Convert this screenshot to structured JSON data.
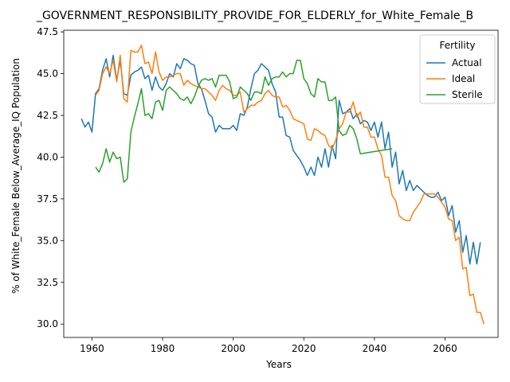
{
  "chart_data": {
    "type": "line",
    "title": "_GOVERNMENT_RESPONSIBILITY_PROVIDE_FOR_ELDERLY_for_White_Female_B",
    "xlabel": "Years",
    "ylabel": "% of White_Female Below_Average_IQ Population",
    "xlim": [
      1952,
      2075
    ],
    "ylim": [
      29.2,
      47.6
    ],
    "xticks": [
      1960,
      1980,
      2000,
      2020,
      2040,
      2060
    ],
    "yticks": [
      30.0,
      32.5,
      35.0,
      37.5,
      40.0,
      42.5,
      45.0,
      47.5
    ],
    "grid": false,
    "legend": {
      "title": "Fertility",
      "position": "top-right"
    },
    "series": [
      {
        "name": "Actual",
        "color": "#1f77b4",
        "points": [
          [
            1957,
            42.3
          ],
          [
            1958,
            41.8
          ],
          [
            1959,
            42.1
          ],
          [
            1960,
            41.5
          ],
          [
            1961,
            43.8
          ],
          [
            1962,
            44.1
          ],
          [
            1963,
            45.2
          ],
          [
            1964,
            45.9
          ],
          [
            1965,
            44.8
          ],
          [
            1966,
            46.1
          ],
          [
            1967,
            44.6
          ],
          [
            1968,
            45.8
          ],
          [
            1969,
            43.8
          ],
          [
            1970,
            43.7
          ],
          [
            1971,
            44.9
          ],
          [
            1972,
            45.1
          ],
          [
            1973,
            45.2
          ],
          [
            1974,
            45.4
          ],
          [
            1975,
            44.7
          ],
          [
            1976,
            44.9
          ],
          [
            1977,
            44.0
          ],
          [
            1978,
            44.8
          ],
          [
            1979,
            44.2
          ],
          [
            1980,
            44.0
          ],
          [
            1981,
            44.4
          ],
          [
            1982,
            45.0
          ],
          [
            1983,
            44.8
          ],
          [
            1984,
            45.6
          ],
          [
            1985,
            45.3
          ],
          [
            1986,
            45.9
          ],
          [
            1987,
            45.8
          ],
          [
            1988,
            45.6
          ],
          [
            1989,
            45.5
          ],
          [
            1990,
            44.4
          ],
          [
            1991,
            44.1
          ],
          [
            1992,
            43.4
          ],
          [
            1993,
            42.6
          ],
          [
            1994,
            42.4
          ],
          [
            1995,
            41.5
          ],
          [
            1996,
            41.9
          ],
          [
            1997,
            41.7
          ],
          [
            1998,
            41.7
          ],
          [
            1999,
            41.7
          ],
          [
            2000,
            41.9
          ],
          [
            2001,
            41.6
          ],
          [
            2002,
            42.6
          ],
          [
            2003,
            42.5
          ],
          [
            2004,
            43.0
          ],
          [
            2005,
            44.1
          ],
          [
            2006,
            45.0
          ],
          [
            2007,
            45.2
          ],
          [
            2008,
            45.6
          ],
          [
            2009,
            45.4
          ],
          [
            2010,
            45.2
          ],
          [
            2011,
            44.4
          ],
          [
            2012,
            43.9
          ],
          [
            2013,
            42.4
          ],
          [
            2014,
            42.4
          ],
          [
            2015,
            41.3
          ],
          [
            2016,
            41.2
          ],
          [
            2017,
            40.4
          ],
          [
            2018,
            40.1
          ],
          [
            2019,
            39.8
          ],
          [
            2020,
            39.4
          ],
          [
            2021,
            38.9
          ],
          [
            2022,
            39.4
          ],
          [
            2023,
            38.9
          ],
          [
            2024,
            40.0
          ],
          [
            2025,
            39.4
          ],
          [
            2026,
            40.5
          ],
          [
            2027,
            39.4
          ],
          [
            2028,
            40.7
          ],
          [
            2029,
            39.9
          ],
          [
            2030,
            43.4
          ],
          [
            2031,
            42.6
          ],
          [
            2032,
            42.7
          ],
          [
            2033,
            42.9
          ],
          [
            2034,
            42.3
          ],
          [
            2035,
            42.6
          ],
          [
            2036,
            42.0
          ],
          [
            2037,
            42.2
          ],
          [
            2038,
            42.1
          ],
          [
            2039,
            41.6
          ],
          [
            2040,
            42.1
          ],
          [
            2041,
            41.2
          ],
          [
            2042,
            42.1
          ],
          [
            2043,
            40.5
          ],
          [
            2044,
            41.5
          ],
          [
            2045,
            39.4
          ],
          [
            2046,
            40.3
          ],
          [
            2047,
            38.4
          ],
          [
            2048,
            39.2
          ],
          [
            2049,
            38.0
          ],
          [
            2050,
            38.6
          ],
          [
            2051,
            38.0
          ],
          [
            2052,
            38.3
          ],
          [
            2053,
            38.1
          ],
          [
            2054,
            37.9
          ],
          [
            2055,
            37.7
          ],
          [
            2056,
            37.6
          ],
          [
            2057,
            37.6
          ],
          [
            2058,
            37.9
          ],
          [
            2059,
            37.4
          ],
          [
            2060,
            37.6
          ],
          [
            2061,
            36.5
          ],
          [
            2062,
            37.1
          ],
          [
            2063,
            35.5
          ],
          [
            2064,
            36.2
          ],
          [
            2065,
            34.3
          ],
          [
            2066,
            35.3
          ],
          [
            2067,
            33.6
          ],
          [
            2068,
            34.9
          ],
          [
            2069,
            33.6
          ],
          [
            2070,
            34.9
          ]
        ]
      },
      {
        "name": "Ideal",
        "color": "#ff7f0e",
        "points": [
          [
            1961,
            43.7
          ],
          [
            1962,
            44.0
          ],
          [
            1963,
            45.0
          ],
          [
            1964,
            45.4
          ],
          [
            1965,
            45.0
          ],
          [
            1966,
            45.8
          ],
          [
            1967,
            44.5
          ],
          [
            1968,
            46.1
          ],
          [
            1969,
            43.5
          ],
          [
            1970,
            43.3
          ],
          [
            1971,
            46.4
          ],
          [
            1972,
            46.3
          ],
          [
            1973,
            46.3
          ],
          [
            1974,
            46.7
          ],
          [
            1975,
            45.6
          ],
          [
            1976,
            45.7
          ],
          [
            1977,
            45.0
          ],
          [
            1978,
            46.3
          ],
          [
            1979,
            45.1
          ],
          [
            1980,
            44.6
          ],
          [
            1981,
            44.8
          ],
          [
            1982,
            44.8
          ],
          [
            1983,
            44.9
          ],
          [
            1984,
            45.0
          ],
          [
            1985,
            45.0
          ],
          [
            1986,
            44.3
          ],
          [
            1987,
            44.6
          ],
          [
            1988,
            44.4
          ],
          [
            1989,
            44.3
          ],
          [
            1990,
            44.2
          ],
          [
            1991,
            44.1
          ],
          [
            1992,
            44.1
          ],
          [
            1993,
            43.9
          ],
          [
            1994,
            43.7
          ],
          [
            1995,
            43.4
          ],
          [
            1996,
            44.0
          ],
          [
            1997,
            44.3
          ],
          [
            1998,
            44.1
          ],
          [
            1999,
            44.0
          ],
          [
            2000,
            43.7
          ],
          [
            2001,
            43.7
          ],
          [
            2002,
            43.9
          ],
          [
            2003,
            42.7
          ],
          [
            2004,
            42.9
          ],
          [
            2005,
            43.1
          ],
          [
            2006,
            43.1
          ],
          [
            2007,
            43.3
          ],
          [
            2008,
            43.4
          ],
          [
            2009,
            43.8
          ],
          [
            2010,
            44.0
          ],
          [
            2011,
            43.7
          ],
          [
            2012,
            43.6
          ],
          [
            2013,
            43.6
          ],
          [
            2014,
            43.0
          ],
          [
            2015,
            43.1
          ],
          [
            2016,
            42.8
          ],
          [
            2017,
            42.3
          ],
          [
            2018,
            42.2
          ],
          [
            2019,
            42.1
          ],
          [
            2020,
            42.0
          ],
          [
            2021,
            41.1
          ],
          [
            2022,
            41.0
          ],
          [
            2023,
            41.7
          ],
          [
            2024,
            41.6
          ],
          [
            2025,
            41.4
          ],
          [
            2026,
            41.3
          ],
          [
            2027,
            40.7
          ],
          [
            2028,
            40.5
          ],
          [
            2029,
            41.0
          ],
          [
            2030,
            41.7
          ],
          [
            2031,
            42.0
          ],
          [
            2032,
            42.7
          ],
          [
            2033,
            42.7
          ],
          [
            2034,
            43.3
          ],
          [
            2035,
            42.4
          ],
          [
            2036,
            42.7
          ],
          [
            2037,
            41.8
          ],
          [
            2038,
            41.8
          ],
          [
            2039,
            41.2
          ],
          [
            2040,
            41.2
          ],
          [
            2041,
            40.5
          ],
          [
            2042,
            40.1
          ],
          [
            2043,
            38.8
          ],
          [
            2044,
            38.8
          ],
          [
            2045,
            37.7
          ],
          [
            2046,
            37.4
          ],
          [
            2047,
            36.5
          ],
          [
            2048,
            36.3
          ],
          [
            2049,
            36.2
          ],
          [
            2050,
            36.2
          ],
          [
            2051,
            36.7
          ],
          [
            2052,
            37.0
          ],
          [
            2053,
            37.3
          ],
          [
            2054,
            37.8
          ],
          [
            2055,
            37.8
          ],
          [
            2056,
            37.8
          ],
          [
            2057,
            37.8
          ],
          [
            2058,
            37.6
          ],
          [
            2059,
            37.3
          ],
          [
            2060,
            37.0
          ],
          [
            2061,
            36.3
          ],
          [
            2062,
            36.2
          ],
          [
            2063,
            35.0
          ],
          [
            2064,
            35.2
          ],
          [
            2065,
            33.3
          ],
          [
            2066,
            33.4
          ],
          [
            2067,
            31.7
          ],
          [
            2068,
            31.8
          ],
          [
            2069,
            30.7
          ],
          [
            2070,
            30.7
          ],
          [
            2071,
            30.0
          ]
        ]
      },
      {
        "name": "Sterile",
        "color": "#2ca02c",
        "points": [
          [
            1961,
            39.4
          ],
          [
            1962,
            39.1
          ],
          [
            1963,
            39.6
          ],
          [
            1964,
            40.5
          ],
          [
            1965,
            39.7
          ],
          [
            1966,
            40.3
          ],
          [
            1967,
            39.9
          ],
          [
            1968,
            40.0
          ],
          [
            1969,
            38.5
          ],
          [
            1970,
            38.7
          ],
          [
            1971,
            41.5
          ],
          [
            1972,
            42.4
          ],
          [
            1973,
            43.2
          ],
          [
            1974,
            44.1
          ],
          [
            1975,
            42.5
          ],
          [
            1976,
            42.6
          ],
          [
            1977,
            42.3
          ],
          [
            1978,
            43.3
          ],
          [
            1979,
            43.4
          ],
          [
            1980,
            42.8
          ],
          [
            1981,
            44.0
          ],
          [
            1982,
            44.2
          ],
          [
            1983,
            44.0
          ],
          [
            1984,
            43.8
          ],
          [
            1985,
            43.5
          ],
          [
            1986,
            43.4
          ],
          [
            1987,
            43.6
          ],
          [
            1988,
            43.2
          ],
          [
            1989,
            43.6
          ],
          [
            1990,
            44.2
          ],
          [
            1991,
            44.6
          ],
          [
            1992,
            44.7
          ],
          [
            1993,
            44.6
          ],
          [
            1994,
            44.7
          ],
          [
            1995,
            44.2
          ],
          [
            1996,
            44.9
          ],
          [
            1997,
            44.9
          ],
          [
            1998,
            44.9
          ],
          [
            1999,
            44.5
          ],
          [
            2000,
            43.5
          ],
          [
            2001,
            43.6
          ],
          [
            2002,
            44.2
          ],
          [
            2003,
            44.0
          ],
          [
            2004,
            43.8
          ],
          [
            2005,
            43.4
          ],
          [
            2006,
            43.9
          ],
          [
            2007,
            43.9
          ],
          [
            2008,
            43.8
          ],
          [
            2009,
            44.8
          ],
          [
            2010,
            44.3
          ],
          [
            2011,
            44.7
          ],
          [
            2012,
            44.8
          ],
          [
            2013,
            44.8
          ],
          [
            2014,
            45.1
          ],
          [
            2015,
            44.8
          ],
          [
            2016,
            45.0
          ],
          [
            2017,
            45.0
          ],
          [
            2018,
            45.8
          ],
          [
            2019,
            45.8
          ],
          [
            2020,
            44.7
          ],
          [
            2021,
            44.4
          ],
          [
            2022,
            43.8
          ],
          [
            2023,
            43.6
          ],
          [
            2024,
            44.7
          ],
          [
            2025,
            44.5
          ],
          [
            2026,
            44.5
          ],
          [
            2027,
            43.4
          ],
          [
            2028,
            43.4
          ],
          [
            2029,
            43.6
          ],
          [
            2030,
            41.6
          ],
          [
            2031,
            41.3
          ],
          [
            2032,
            41.4
          ],
          [
            2033,
            41.9
          ],
          [
            2034,
            41.7
          ],
          [
            2035,
            41.1
          ],
          [
            2036,
            40.2
          ],
          [
            2045,
            40.5
          ]
        ]
      }
    ]
  }
}
